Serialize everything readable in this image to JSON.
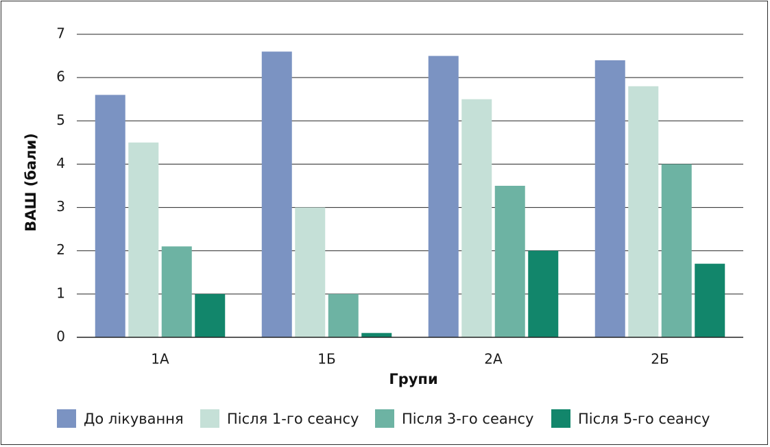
{
  "chart_data": {
    "type": "bar",
    "categories": [
      "1А",
      "1Б",
      "2А",
      "2Б"
    ],
    "series": [
      {
        "name": "До лікування",
        "color": "#7b93c2",
        "values": [
          5.6,
          6.6,
          6.5,
          6.4
        ]
      },
      {
        "name": "Після 1-го сеансу",
        "color": "#c5e0d7",
        "values": [
          4.5,
          3.0,
          5.5,
          5.8
        ]
      },
      {
        "name": "Після 3-го сеансу",
        "color": "#6db3a3",
        "values": [
          2.1,
          1.0,
          3.5,
          4.0
        ]
      },
      {
        "name": "Після 5-го сеансу",
        "color": "#12866b",
        "values": [
          1.0,
          0.1,
          2.0,
          1.7
        ]
      }
    ],
    "title": "",
    "xlabel": "Групи",
    "ylabel": "ВАШ (бали)",
    "ylim": [
      0,
      7
    ],
    "yticks": [
      "0",
      "1",
      "2",
      "3",
      "4",
      "5",
      "6",
      "7"
    ],
    "grid": true,
    "legend_position": "bottom"
  }
}
